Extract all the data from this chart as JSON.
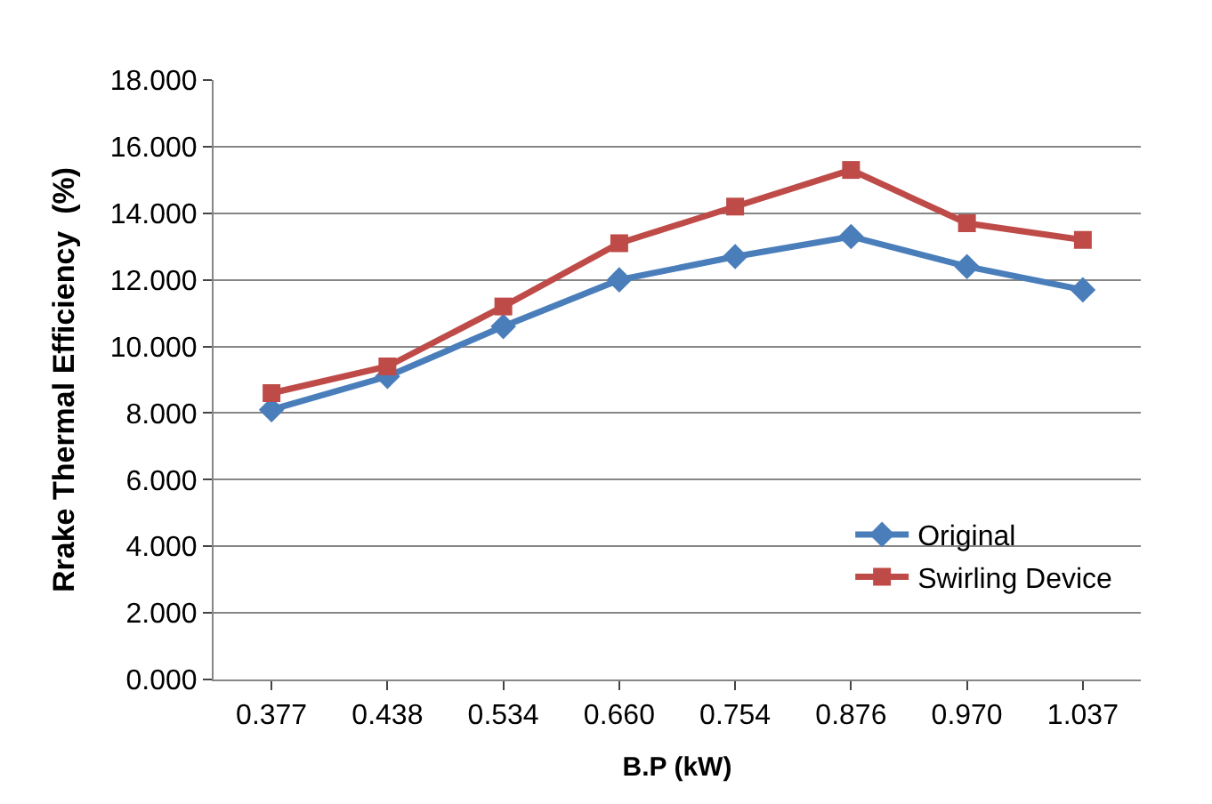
{
  "chart_data": {
    "type": "line",
    "xlabel": "B.P (kW)",
    "ylabel": "Rrake Thermal Efficiency  (%)",
    "categories": [
      "0.377",
      "0.438",
      "0.534",
      "0.660",
      "0.754",
      "0.876",
      "0.970",
      "1.037"
    ],
    "series": [
      {
        "name": "Original",
        "color": "#4a7ebb",
        "marker": "diamond",
        "values": [
          8.1,
          9.1,
          10.6,
          12.0,
          12.7,
          13.3,
          12.4,
          11.7
        ]
      },
      {
        "name": "Swirling Device",
        "color": "#be4b48",
        "marker": "square",
        "values": [
          8.6,
          9.4,
          11.2,
          13.1,
          14.2,
          15.3,
          13.7,
          13.2
        ]
      }
    ],
    "ylim": [
      0,
      18
    ],
    "yticks": [
      {
        "value": 0,
        "label": "0.000"
      },
      {
        "value": 2,
        "label": "2.000"
      },
      {
        "value": 4,
        "label": "4.000"
      },
      {
        "value": 6,
        "label": "6.000"
      },
      {
        "value": 8,
        "label": "8.000"
      },
      {
        "value": 10,
        "label": "10.000"
      },
      {
        "value": 12,
        "label": "12.000"
      },
      {
        "value": 14,
        "label": "14.000"
      },
      {
        "value": 16,
        "label": "16.000"
      },
      {
        "value": 18,
        "label": "18.000"
      }
    ],
    "grid": "y",
    "legend": "bottom right",
    "line_style": "solid"
  }
}
